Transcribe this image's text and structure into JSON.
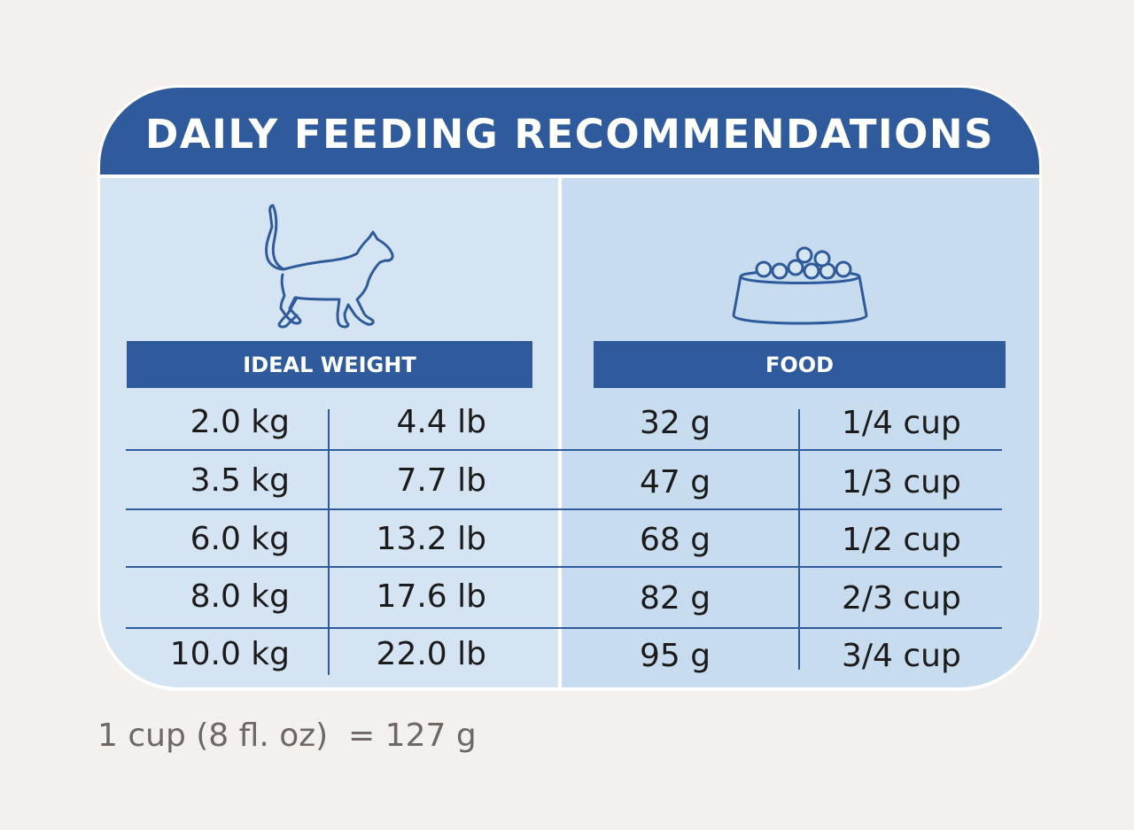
{
  "title": "DAILY FEEDING RECOMMENDATIONS",
  "icons": {
    "left": "cat-icon",
    "right": "food-bowl-icon"
  },
  "columns": {
    "weight": "IDEAL WEIGHT",
    "food": "FOOD"
  },
  "rows": [
    {
      "kg": "2.0 kg",
      "lb": "4.4 lb",
      "g": "32 g",
      "cup": "1/4 cup"
    },
    {
      "kg": "3.5 kg",
      "lb": "7.7 lb",
      "g": "47 g",
      "cup": "1/3 cup"
    },
    {
      "kg": "6.0 kg",
      "lb": "13.2 lb",
      "g": "68 g",
      "cup": "1/2 cup"
    },
    {
      "kg": "8.0 kg",
      "lb": "17.6 lb",
      "g": "82 g",
      "cup": "2/3 cup"
    },
    {
      "kg": "10.0 kg",
      "lb": "22.0 lb",
      "g": "95 g",
      "cup": "3/4 cup"
    }
  ],
  "footnote": "1 cup (8 fl. oz)  = 127 g",
  "colors": {
    "header_blue": "#2f5b9c",
    "panel_left": "#d4e4f2",
    "panel_right": "#c7dcee",
    "background": "#f4f0ed"
  }
}
